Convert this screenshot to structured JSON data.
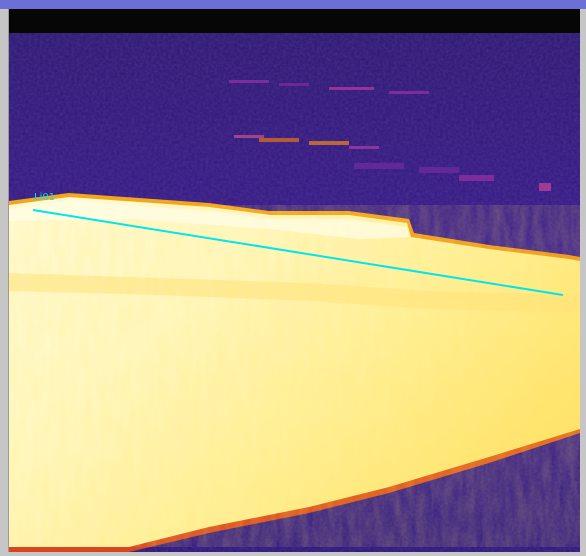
{
  "window": {
    "title": ""
  },
  "thermal_image": {
    "palette": "iron",
    "colors": {
      "background_cold": "#2d1a7a",
      "background_mid": "#3f1d88",
      "hot_core": "#fffde3",
      "hot_mid": "#ffeb7a",
      "hot_edge": "#f6b61c",
      "edge_glow": "#e0541a",
      "measurement_line": "#00e5f0"
    },
    "measurement": {
      "label": "Li01",
      "type": "line"
    }
  }
}
